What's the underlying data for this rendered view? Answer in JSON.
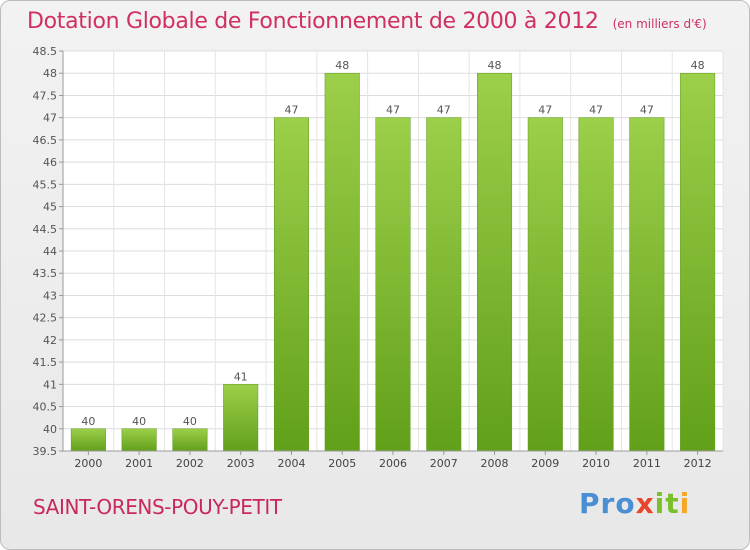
{
  "chart_data": {
    "type": "bar",
    "title": "Dotation Globale de Fonctionnement de 2000 à 2012",
    "subtitle": "(en milliers d'€)",
    "categories": [
      "2000",
      "2001",
      "2002",
      "2003",
      "2004",
      "2005",
      "2006",
      "2007",
      "2008",
      "2009",
      "2010",
      "2011",
      "2012"
    ],
    "values": [
      40,
      40,
      40,
      41,
      47,
      48,
      47,
      47,
      48,
      47,
      47,
      47,
      48
    ],
    "ylim": [
      39.5,
      48.5
    ],
    "yticks": [
      "39.5",
      "40",
      "40.5",
      "41",
      "41.5",
      "42",
      "42.5",
      "43",
      "43.5",
      "44",
      "44.5",
      "45",
      "45.5",
      "46",
      "46.5",
      "47",
      "47.5",
      "48",
      "48.5"
    ],
    "xlabel": "",
    "ylabel": "",
    "grid": true,
    "bar_color": "#7cbf33"
  },
  "commune": "SAINT-ORENS-POUY-PETIT",
  "logo": {
    "part1": "Pro",
    "part2": "x",
    "part3": "it",
    "part4": "i"
  }
}
